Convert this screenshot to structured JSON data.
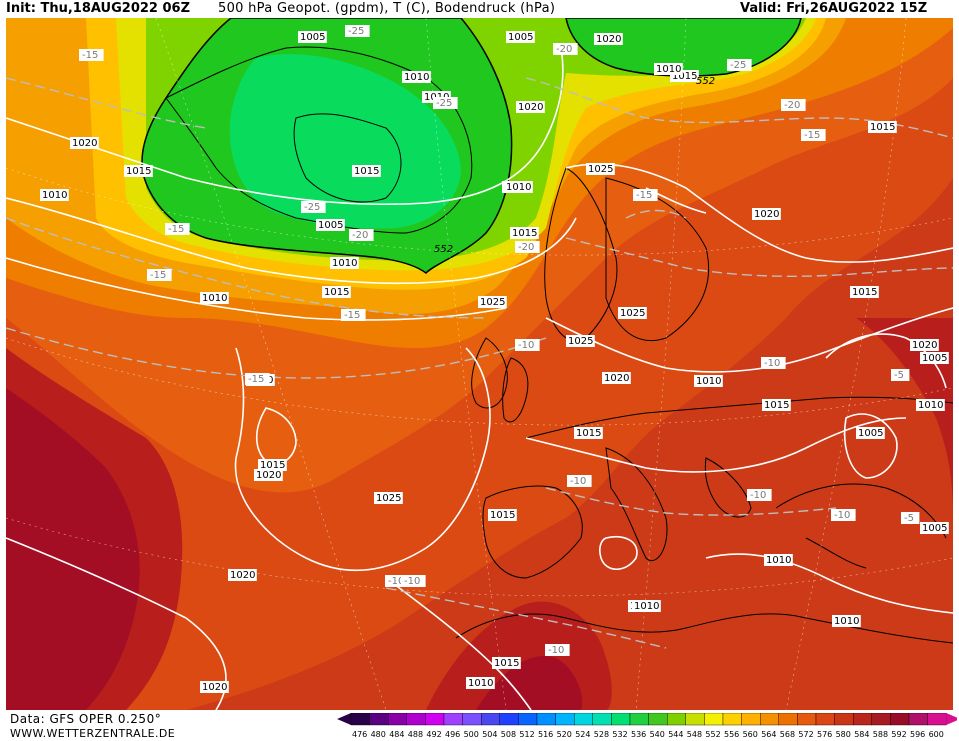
{
  "header": {
    "init": "Init: Thu,18AUG2022 06Z",
    "title": "500 hPa Geopot. (gpdm), T (C), Bodendruck (hPa)",
    "valid": "Valid: Fri,26AUG2022 15Z"
  },
  "footer": {
    "data_source": "Data: GFS OPER 0.250°",
    "website": "WWW.WETTERZENTRALE.DE"
  },
  "colors": {
    "geop_552_green": "#1fc71f",
    "geop_low_green": "#00e676",
    "geop_556": "#7fd400",
    "geop_560": "#e4e000",
    "geop_564": "#ffc000",
    "geop_568": "#f5a000",
    "geop_572": "#ee7d00",
    "geop_576": "#e65f10",
    "geop_580": "#dc4a14",
    "geop_584": "#cc3a18",
    "geop_588": "#b81e1c",
    "geop_592": "#a40e24"
  },
  "legend": {
    "values": [
      "476",
      "480",
      "484",
      "488",
      "492",
      "496",
      "500",
      "504",
      "508",
      "512",
      "516",
      "520",
      "524",
      "528",
      "532",
      "536",
      "540",
      "544",
      "548",
      "552",
      "556",
      "560",
      "564",
      "568",
      "572",
      "576",
      "580",
      "584",
      "588",
      "592",
      "596",
      "600"
    ],
    "colors": [
      "#2a0046",
      "#5a0080",
      "#8a00a8",
      "#b000d0",
      "#d000f0",
      "#a040ff",
      "#7a50ff",
      "#4a46f0",
      "#2040ff",
      "#0a64ff",
      "#0090ff",
      "#00b4ff",
      "#00d6e0",
      "#00e0b0",
      "#00e070",
      "#20d040",
      "#40c820",
      "#80d000",
      "#c8e000",
      "#f4f000",
      "#ffd000",
      "#ffb000",
      "#f59000",
      "#ee7000",
      "#e65a10",
      "#dc4614",
      "#cc3418",
      "#bb261c",
      "#a81a22",
      "#980c28",
      "#b0106a",
      "#d81090"
    ]
  },
  "pressure_labels": [
    "1005",
    "1010",
    "1010",
    "1015",
    "1015",
    "1020",
    "1010",
    "1015",
    "1020",
    "1010",
    "1015",
    "1005",
    "1010",
    "1020",
    "1010",
    "1015",
    "1015",
    "1025",
    "1020",
    "1025",
    "1020",
    "1015",
    "1025",
    "1020",
    "1025",
    "1015",
    "1010",
    "1015",
    "1020",
    "1015",
    "1020",
    "1010",
    "1015",
    "1010",
    "1005",
    "1005",
    "1005",
    "1015",
    "1010",
    "1025",
    "1020",
    "1015",
    "1010",
    "1005",
    "1010",
    "1010",
    "1020",
    "1010"
  ],
  "temp_labels": [
    "-15",
    "-25",
    "-20",
    "-25",
    "-25",
    "-20",
    "-15",
    "-15",
    "-15",
    "-25",
    "-20",
    "-15",
    "-20",
    "-10",
    "-15",
    "-15",
    "-10",
    "-10",
    "-10",
    "-10",
    "-10",
    "-10",
    "-5",
    "-5",
    "-10"
  ],
  "geop_552_label": "552"
}
